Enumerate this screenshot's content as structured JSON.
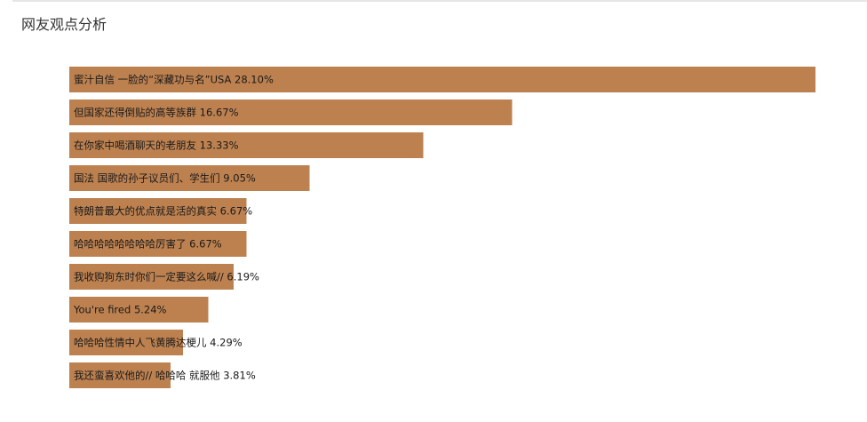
{
  "panel": {
    "title": "网友观点分析"
  },
  "chart_data": {
    "type": "bar",
    "orientation": "horizontal",
    "title": "网友观点分析",
    "bar_color": "#bd8150",
    "value_unit": "%",
    "categories": [
      "蜜汁自信 一脸的“深藏功与名”USA",
      "但国家还得倒贴的高等族群",
      "在你家中喝酒聊天的老朋友",
      "国法 国歌的孙子议员们、学生们",
      "特朗普最大的优点就是活的真实",
      "哈哈哈哈哈哈哈哈厉害了",
      "我收购狗东时你们一定要这么喊//",
      "You're fired",
      "哈哈哈性情中人飞黄腾达梗儿",
      "我还蛮喜欢他的// 哈哈哈 就服他"
    ],
    "values": [
      28.1,
      16.67,
      13.33,
      9.05,
      6.67,
      6.67,
      6.19,
      5.24,
      4.29,
      3.81
    ],
    "value_labels": [
      "28.10%",
      "16.67%",
      "13.33%",
      "9.05%",
      "6.67%",
      "6.67%",
      "6.19%",
      "5.24%",
      "4.29%",
      "3.81%"
    ]
  }
}
